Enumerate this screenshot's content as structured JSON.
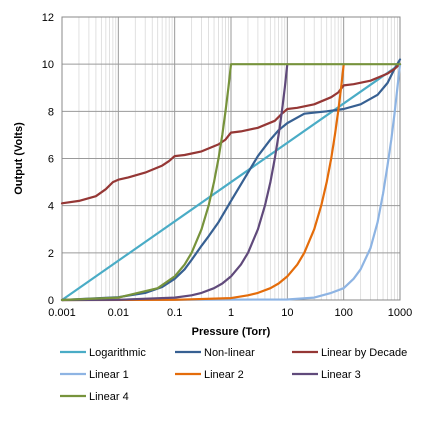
{
  "chart_data": {
    "type": "line",
    "xlabel": "Pressure (Torr)",
    "ylabel": "Output (Volts)",
    "xscale": "log",
    "xlim": [
      0.001,
      1000
    ],
    "ylim": [
      0,
      12
    ],
    "x_ticks": [
      0.001,
      0.01,
      0.1,
      1,
      10,
      100,
      1000
    ],
    "x_tick_labels": [
      "0.001",
      "0.01",
      "0.1",
      "1",
      "10",
      "100",
      "1000"
    ],
    "y_ticks": [
      0,
      2,
      4,
      6,
      8,
      10,
      12
    ],
    "y_tick_labels": [
      "0",
      "2",
      "4",
      "6",
      "8",
      "10",
      "12"
    ],
    "grid": {
      "major_x": true,
      "minor_x": true,
      "major_y": true
    },
    "legend_position": "bottom",
    "series": [
      {
        "name": "Logarithmic",
        "color": "#4aacc6",
        "points": [
          [
            0.001,
            0
          ],
          [
            1000,
            10
          ]
        ]
      },
      {
        "name": "Non-linear",
        "color": "#376092",
        "points": [
          [
            0.001,
            0
          ],
          [
            0.01,
            0.12
          ],
          [
            0.03,
            0.3
          ],
          [
            0.06,
            0.55
          ],
          [
            0.1,
            0.9
          ],
          [
            0.15,
            1.3
          ],
          [
            0.2,
            1.7
          ],
          [
            0.3,
            2.3
          ],
          [
            0.4,
            2.7
          ],
          [
            0.6,
            3.3
          ],
          [
            1,
            4.2
          ],
          [
            1.5,
            4.9
          ],
          [
            2,
            5.4
          ],
          [
            3,
            6.1
          ],
          [
            5,
            6.8
          ],
          [
            7,
            7.2
          ],
          [
            10,
            7.5
          ],
          [
            20,
            7.9
          ],
          [
            50,
            8.0
          ],
          [
            100,
            8.1
          ],
          [
            200,
            8.3
          ],
          [
            400,
            8.7
          ],
          [
            600,
            9.2
          ],
          [
            800,
            9.8
          ],
          [
            1000,
            10.2
          ]
        ]
      },
      {
        "name": "Linear by Decade",
        "color": "#953735",
        "points": [
          [
            0.001,
            4.1
          ],
          [
            0.002,
            4.2
          ],
          [
            0.004,
            4.4
          ],
          [
            0.006,
            4.7
          ],
          [
            0.008,
            5.0
          ],
          [
            0.01,
            5.1
          ],
          [
            0.015,
            5.2
          ],
          [
            0.03,
            5.4
          ],
          [
            0.06,
            5.7
          ],
          [
            0.08,
            5.9
          ],
          [
            0.1,
            6.1
          ],
          [
            0.15,
            6.15
          ],
          [
            0.3,
            6.3
          ],
          [
            0.6,
            6.6
          ],
          [
            0.8,
            6.8
          ],
          [
            1,
            7.1
          ],
          [
            1.5,
            7.15
          ],
          [
            3,
            7.3
          ],
          [
            6,
            7.6
          ],
          [
            8,
            7.9
          ],
          [
            10,
            8.1
          ],
          [
            15,
            8.15
          ],
          [
            30,
            8.3
          ],
          [
            60,
            8.6
          ],
          [
            80,
            8.8
          ],
          [
            100,
            9.1
          ],
          [
            150,
            9.15
          ],
          [
            300,
            9.3
          ],
          [
            600,
            9.6
          ],
          [
            800,
            9.8
          ],
          [
            1000,
            10.0
          ]
        ]
      },
      {
        "name": "Linear 1",
        "color": "#8eb4e3",
        "points": [
          [
            0.001,
            0
          ],
          [
            10,
            0.02
          ],
          [
            30,
            0.1
          ],
          [
            60,
            0.3
          ],
          [
            100,
            0.5
          ],
          [
            150,
            0.9
          ],
          [
            200,
            1.3
          ],
          [
            300,
            2.2
          ],
          [
            400,
            3.3
          ],
          [
            500,
            4.5
          ],
          [
            600,
            5.7
          ],
          [
            700,
            6.8
          ],
          [
            800,
            7.9
          ],
          [
            900,
            9.0
          ],
          [
            1000,
            10.0
          ]
        ]
      },
      {
        "name": "Linear 2",
        "color": "#e46c0a",
        "points": [
          [
            0.001,
            0
          ],
          [
            0.1,
            0.01
          ],
          [
            1,
            0.08
          ],
          [
            2,
            0.2
          ],
          [
            3,
            0.3
          ],
          [
            5,
            0.5
          ],
          [
            7,
            0.7
          ],
          [
            10,
            1.0
          ],
          [
            15,
            1.5
          ],
          [
            20,
            2.0
          ],
          [
            30,
            3.0
          ],
          [
            40,
            4.0
          ],
          [
            50,
            5.0
          ],
          [
            60,
            6.0
          ],
          [
            70,
            7.0
          ],
          [
            80,
            8.0
          ],
          [
            90,
            9.0
          ],
          [
            100,
            10.0
          ]
        ]
      },
      {
        "name": "Linear 3",
        "color": "#604a7b",
        "points": [
          [
            0.001,
            0
          ],
          [
            0.01,
            0.01
          ],
          [
            0.1,
            0.1
          ],
          [
            0.2,
            0.2
          ],
          [
            0.3,
            0.3
          ],
          [
            0.5,
            0.5
          ],
          [
            0.7,
            0.7
          ],
          [
            1,
            1.0
          ],
          [
            1.5,
            1.5
          ],
          [
            2,
            2.0
          ],
          [
            3,
            3.0
          ],
          [
            4,
            4.0
          ],
          [
            5,
            5.0
          ],
          [
            6,
            6.0
          ],
          [
            7,
            7.0
          ],
          [
            8,
            8.0
          ],
          [
            9,
            9.0
          ],
          [
            10,
            10.0
          ]
        ]
      },
      {
        "name": "Linear 4",
        "color": "#77933c",
        "points": [
          [
            0.001,
            0
          ],
          [
            0.01,
            0.1
          ],
          [
            0.05,
            0.5
          ],
          [
            0.1,
            1.0
          ],
          [
            0.15,
            1.5
          ],
          [
            0.2,
            2.0
          ],
          [
            0.3,
            3.0
          ],
          [
            0.4,
            4.0
          ],
          [
            0.5,
            5.0
          ],
          [
            0.6,
            6.0
          ],
          [
            0.7,
            7.0
          ],
          [
            0.8,
            8.0
          ],
          [
            0.9,
            9.0
          ],
          [
            1,
            10.0
          ],
          [
            1000,
            10.0
          ]
        ]
      }
    ]
  }
}
